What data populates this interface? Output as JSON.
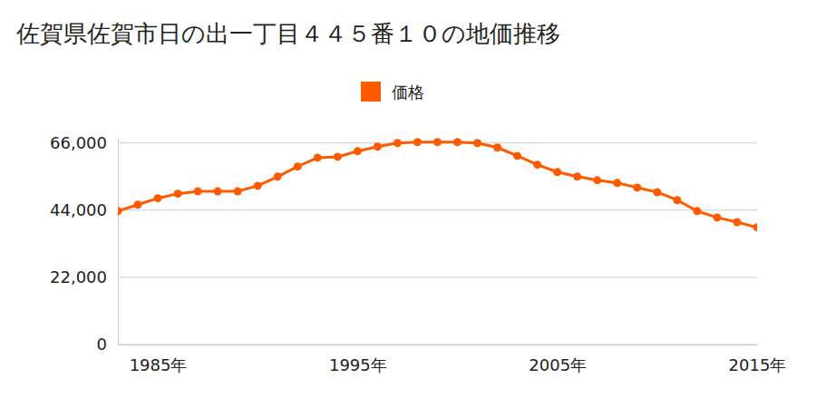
{
  "chart_data": {
    "type": "line",
    "title": "佐賀県佐賀市日の出一丁目４４５番１０の地価推移",
    "x": [
      1983,
      1984,
      1985,
      1986,
      1987,
      1988,
      1989,
      1990,
      1991,
      1992,
      1993,
      1994,
      1995,
      1996,
      1997,
      1998,
      1999,
      2000,
      2001,
      2002,
      2003,
      2004,
      2005,
      2006,
      2007,
      2008,
      2009,
      2010,
      2011,
      2012,
      2013,
      2014,
      2015
    ],
    "series": [
      {
        "name": "価格",
        "color": "#ff5a00",
        "marker": "circle",
        "values": [
          43700,
          45800,
          47900,
          49400,
          50200,
          50200,
          50200,
          52000,
          55000,
          58300,
          61200,
          61500,
          63300,
          64800,
          66000,
          66300,
          66300,
          66300,
          66000,
          64500,
          61800,
          58900,
          56500,
          55000,
          53800,
          52900,
          51400,
          49900,
          47300,
          43700,
          41600,
          40100,
          38400
        ]
      }
    ],
    "xlim": [
      1983,
      2015
    ],
    "xticks": [
      {
        "value": 1985,
        "label": "1985年"
      },
      {
        "value": 1995,
        "label": "1995年"
      },
      {
        "value": 2005,
        "label": "2005年"
      },
      {
        "value": 2015,
        "label": "2015年"
      }
    ],
    "ylim": [
      0,
      68000
    ],
    "yticks": [
      0,
      {
        "value": 22000,
        "label": "22,000"
      },
      {
        "value": 44000,
        "label": "44,000"
      },
      {
        "value": 66000,
        "label": "66,000"
      }
    ],
    "grid": true,
    "legend": "top"
  }
}
